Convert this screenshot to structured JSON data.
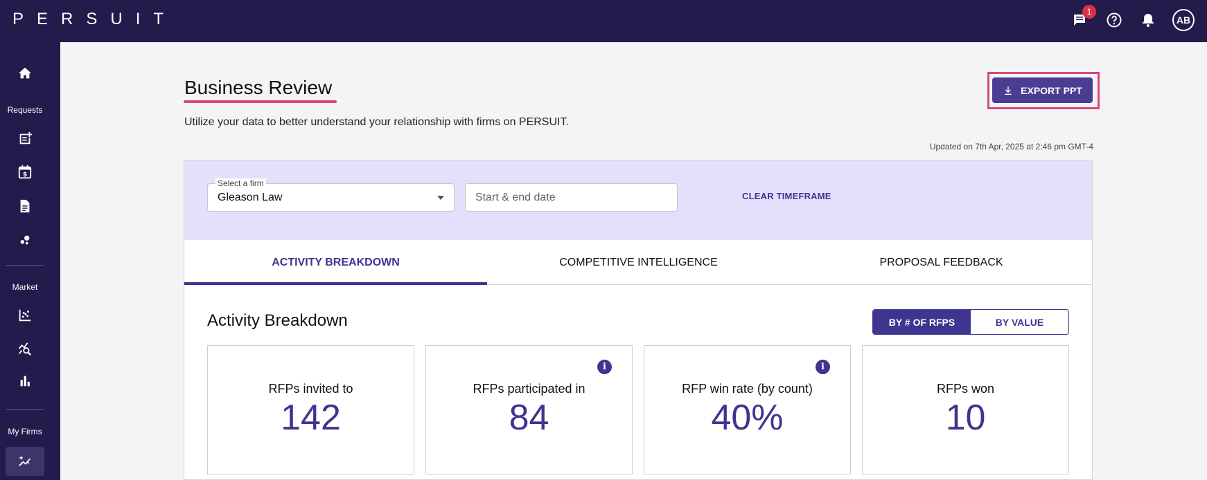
{
  "app": {
    "logo_text": "PERSUIT"
  },
  "topbar": {
    "chat_badge_count": "1",
    "avatar_initials": "AB"
  },
  "sidebar": {
    "sections": {
      "requests": "Requests",
      "market": "Market",
      "my_firms": "My Firms"
    },
    "icons": [
      "home-icon",
      "new-request-icon",
      "calendar-dollar-icon",
      "document-icon",
      "bubbles-icon",
      "scatter-chart-icon",
      "search-analytics-icon",
      "bar-chart-icon",
      "sparkle-chart-icon"
    ]
  },
  "page": {
    "title": "Business Review",
    "subtitle": "Utilize your data to better understand your relationship with firms on PERSUIT.",
    "updated": "Updated on 7th Apr, 2025 at 2:46 pm GMT-4",
    "export_label": "EXPORT PPT"
  },
  "filters": {
    "firm_label": "Select a firm",
    "firm_value": "Gleason  Law",
    "date_placeholder": "Start & end date",
    "clear_label": "CLEAR TIMEFRAME"
  },
  "tabs": [
    {
      "label": "ACTIVITY BREAKDOWN",
      "active": true
    },
    {
      "label": "COMPETITIVE INTELLIGENCE",
      "active": false
    },
    {
      "label": "PROPOSAL FEEDBACK",
      "active": false
    }
  ],
  "section": {
    "title": "Activity Breakdown",
    "toggle": [
      {
        "label": "BY # OF RFPS",
        "active": true
      },
      {
        "label": "BY VALUE",
        "active": false
      }
    ]
  },
  "cards": [
    {
      "label": "RFPs invited to",
      "value": "142",
      "has_info": false
    },
    {
      "label": "RFPs participated in",
      "value": "84",
      "has_info": true
    },
    {
      "label": "RFP win rate (by count)",
      "value": "40%",
      "has_info": true
    },
    {
      "label": "RFPs won",
      "value": "10",
      "has_info": false
    }
  ],
  "colors": {
    "nav_bg": "#221b4b",
    "accent": "#3f3590",
    "highlight": "#d6487e",
    "filter_bg": "#e4e0fb"
  }
}
